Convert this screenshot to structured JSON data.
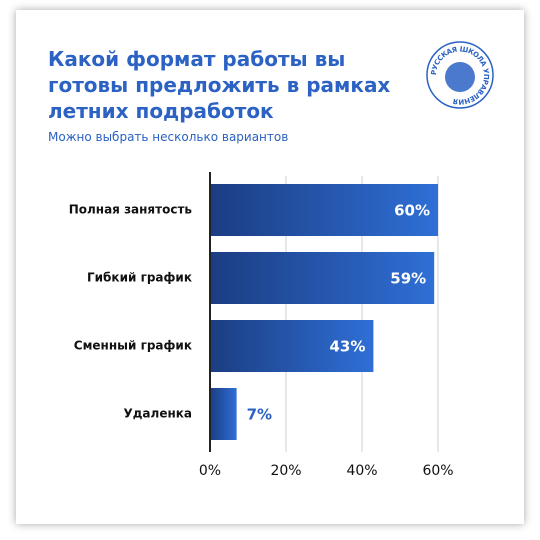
{
  "chart_data": {
    "type": "bar",
    "orientation": "horizontal",
    "title": "Какой формат работы вы готовы предложить в рамках летних подработок",
    "subtitle": "Можно выбрать несколько вариантов",
    "logo_text": "РУССКАЯ ШКОЛА УПРАВЛЕНИЯ",
    "categories": [
      "Полная занятость",
      "Гибкий график",
      "Сменный график",
      "Удаленка"
    ],
    "values": [
      60,
      59,
      43,
      7
    ],
    "value_labels": [
      "60%",
      "59%",
      "43%",
      "7%"
    ],
    "color": "#2f6fd6",
    "xlim": [
      0,
      60
    ],
    "xticks": [
      {
        "value": 0,
        "label": "0%"
      },
      {
        "value": 20,
        "label": "20%"
      },
      {
        "value": 40,
        "label": "40%"
      },
      {
        "value": 60,
        "label": "60%"
      }
    ],
    "grid": true
  }
}
